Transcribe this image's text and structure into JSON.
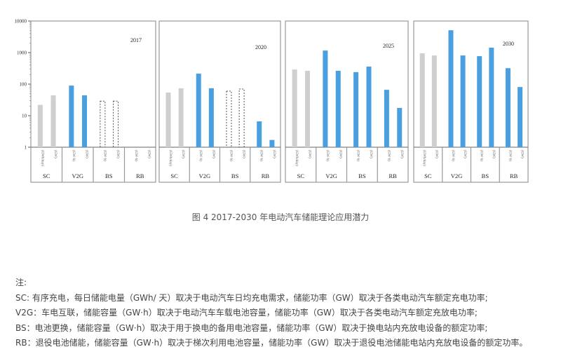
{
  "chart_data": {
    "type": "bar",
    "y_scale": "log",
    "ylim": [
      1,
      10000
    ],
    "y_ticks": [
      "1",
      "10",
      "100",
      "1000",
      "10000"
    ],
    "groups": [
      "SC",
      "V2G",
      "BS",
      "RB"
    ],
    "bar_labels": [
      [
        "(GWh/day)",
        "(GW)"
      ],
      [
        "(GW·h)",
        "(GW)"
      ],
      [
        "(GW·h)",
        "(GW)"
      ],
      [
        "(GW·h)",
        "(GW)"
      ]
    ],
    "colors": {
      "SC": "#cfcfcf",
      "other": "#4a9fe0",
      "dashed_outline": "#555555"
    },
    "panels": [
      {
        "year": "2017",
        "values": [
          [
            22,
            44
          ],
          [
            90,
            44
          ],
          [
            29,
            29
          ],
          [
            null,
            null
          ]
        ],
        "dashed_groups": [
          "BS"
        ]
      },
      {
        "year": "2020",
        "values": [
          [
            54,
            74
          ],
          [
            215,
            74
          ],
          [
            60,
            70
          ],
          [
            6.6,
            1.7
          ]
        ],
        "dashed_groups": [
          "BS"
        ]
      },
      {
        "year": "2025",
        "values": [
          [
            290,
            265
          ],
          [
            1160,
            265
          ],
          [
            240,
            360
          ],
          [
            66,
            17.6
          ]
        ],
        "dashed_groups": []
      },
      {
        "year": "2030",
        "values": [
          [
            950,
            810
          ],
          [
            5100,
            810
          ],
          [
            770,
            1430
          ],
          [
            320,
            81
          ]
        ],
        "dashed_groups": []
      }
    ]
  },
  "caption": "图 4   2017-2030 年电动汽车储能理论应用潜力",
  "notes": {
    "title": "注:",
    "lines": [
      "SC: 有序充电，每日储能电量（GWh/ 天）取决于电动汽车日均充电需求，储能功率（GW）取决于各类电动汽车额定充电功率;",
      "V2G：车电互联，储能容量（GW·h）取决于电动汽车车载电池容量，储能功率（GW）取决于各类电动汽车额定充放电功率;",
      "BS：电池更换，储能容量（GW·h）取决于用于换电的备用电池容量，储能功率（GW）取决于换电站内充放电设备的额定功率;",
      "RB：退役电池储能，储能容量（GW·h）取决于梯次利用电池容量，储能功率（GW）取决于退役电池储能电站内充放电设备的额定功率。"
    ]
  }
}
